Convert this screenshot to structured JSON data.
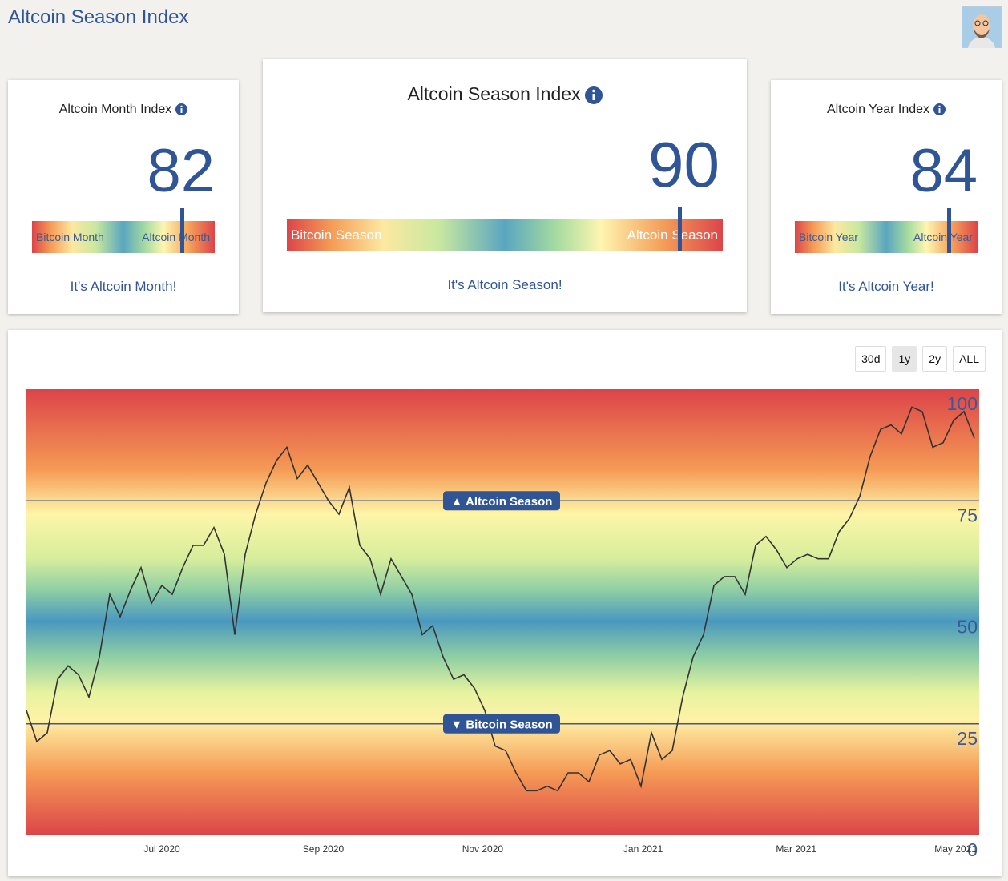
{
  "header": {
    "title": "Altcoin Season Index"
  },
  "cards": [
    {
      "title": "Altcoin Month Index",
      "value": 82,
      "low_label": "Bitcoin Month",
      "high_label": "Altcoin Month",
      "status": "It's Altcoin Month!"
    },
    {
      "title": "Altcoin Season Index",
      "value": 90,
      "low_label": "Bitcoin Season",
      "high_label": "Altcoin Season",
      "status": "It's Altcoin Season!"
    },
    {
      "title": "Altcoin Year Index",
      "value": 84,
      "low_label": "Bitcoin Year",
      "high_label": "Altcoin Year",
      "status": "It's Altcoin Year!"
    }
  ],
  "range_buttons": [
    "30d",
    "1y",
    "2y",
    "ALL"
  ],
  "active_button": 1,
  "chart_data": {
    "type": "line",
    "color": "#333333",
    "values": [
      28,
      21,
      23,
      35,
      38,
      36,
      31,
      40,
      54,
      49,
      55,
      60,
      52,
      56,
      54,
      60,
      65,
      65,
      69,
      63,
      45,
      63,
      72,
      79,
      84,
      87,
      80,
      83,
      79,
      75,
      72,
      78,
      65,
      62,
      54,
      62,
      58,
      54,
      45,
      47,
      40,
      35,
      36,
      33,
      28,
      20,
      19,
      14,
      10,
      10,
      11,
      10,
      14,
      14,
      12,
      18,
      19,
      16,
      17,
      11,
      23,
      17,
      19,
      31,
      40,
      45,
      56,
      58,
      58,
      54,
      65,
      67,
      64,
      60,
      62,
      63,
      62,
      62,
      68,
      71,
      76,
      85,
      91,
      92,
      90,
      96,
      95,
      87,
      88,
      93,
      95,
      89
    ],
    "xlim": [
      0,
      91
    ],
    "xticks": [
      {
        "value": 13,
        "label": "Jul 2020"
      },
      {
        "value": 28.5,
        "label": "Sep 2020"
      },
      {
        "value": 43.8,
        "label": "Nov 2020"
      },
      {
        "value": 59.2,
        "label": "Jan 2021"
      },
      {
        "value": 73.9,
        "label": "Mar 2021"
      },
      {
        "value": 89.2,
        "label": "May 2021"
      }
    ],
    "ylim": [
      0,
      100
    ],
    "yticks": [
      0,
      25,
      50,
      75,
      100
    ],
    "thresholds": [
      {
        "value": 75,
        "label": "▲ Altcoin Season"
      },
      {
        "value": 25,
        "label": "▼ Bitcoin Season"
      }
    ],
    "threshold_color": "#3a5a97"
  }
}
